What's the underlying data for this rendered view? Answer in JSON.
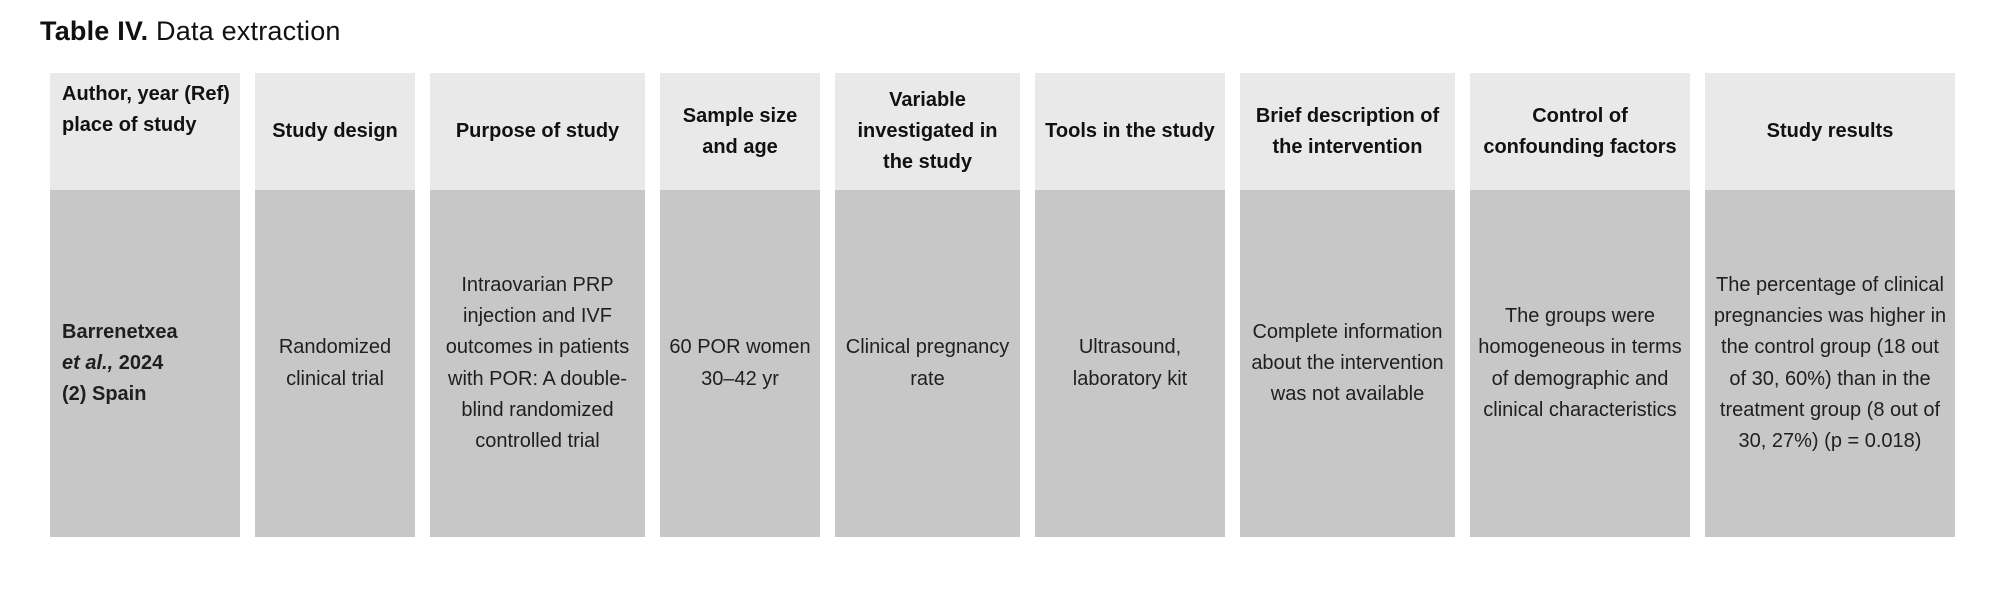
{
  "title": {
    "label_bold": "Table IV.",
    "label_rest": " Data extraction"
  },
  "colors": {
    "header_bg": "#e9e9e9",
    "body_bg": "#c7c7c7",
    "text": "#1f1f1f",
    "heading_text": "#111111"
  },
  "table": {
    "headers": [
      "Author, year (Ref) place of study",
      "Study design",
      "Purpose of study",
      "Sample size and age",
      "Variable investigated in the study",
      "Tools in the study",
      "Brief description of the intervention",
      "Control of confounding factors",
      "Study results"
    ],
    "row": {
      "author": {
        "line1": "Barrenetxea",
        "line2_italic": "et al.,",
        "line2_rest": " 2024",
        "line3": "(2) Spain"
      },
      "study_design": "Randomized clinical trial",
      "purpose": "Intraovarian PRP injection and IVF outcomes in patients with POR: A double-blind randomized controlled trial",
      "sample_size_age": "60 POR women 30–42 yr",
      "variable_investigated": "Clinical pregnancy rate",
      "tools": "Ultrasound, laboratory kit",
      "intervention_description": "Complete information about the intervention was not available",
      "confounding_control": "The groups were homogeneous in terms of demographic and clinical characteristics",
      "study_results": "The percentage of clinical pregnancies was higher in the control group (18 out of 30, 60%) than in the treatment group (8 out of 30, 27%) (p = 0.018)"
    }
  }
}
